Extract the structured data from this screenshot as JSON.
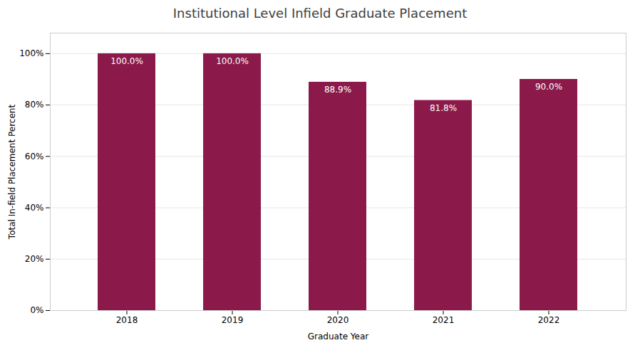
{
  "chart_data": {
    "type": "bar",
    "title": "Institutional Level Infield Graduate Placement",
    "categories": [
      "2018",
      "2019",
      "2020",
      "2021",
      "2022"
    ],
    "values": [
      100.0,
      100.0,
      88.9,
      81.8,
      90.0
    ],
    "value_labels": [
      "100.0%",
      "100.0%",
      "88.9%",
      "81.8%",
      "90.0%"
    ],
    "data_labels": true,
    "color": "#8B1A4A",
    "xlabel": "Graduate Year",
    "ylabel": "Total In-field Placement Percent",
    "ylim": [
      0,
      108
    ],
    "yticks": [
      {
        "value": 0,
        "label": "0%"
      },
      {
        "value": 20,
        "label": "20%"
      },
      {
        "value": 40,
        "label": "40%"
      },
      {
        "value": 60,
        "label": "60%"
      },
      {
        "value": 80,
        "label": "80%"
      },
      {
        "value": 100,
        "label": "100%"
      }
    ],
    "grid": true
  }
}
